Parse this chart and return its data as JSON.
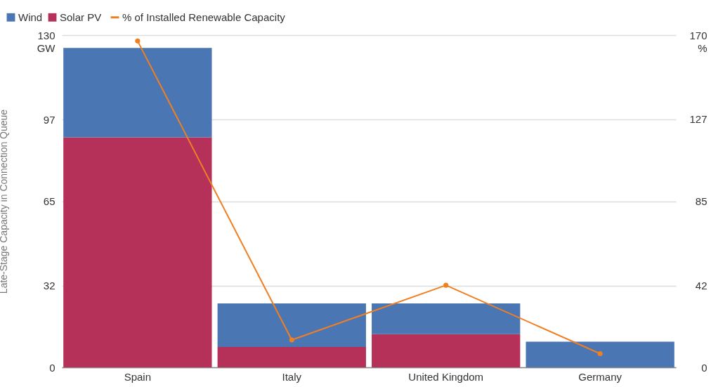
{
  "chart_data": {
    "type": "bar",
    "stacked": true,
    "ylabel": "Late-Stage Capacity in Connection Queue",
    "categories": [
      "Spain",
      "Italy",
      "United Kingdom",
      "Germany"
    ],
    "series": [
      {
        "name": "Solar PV",
        "color": "#b5315a",
        "values": [
          90,
          8,
          13,
          0
        ]
      },
      {
        "name": "Wind",
        "color": "#4a76b4",
        "values": [
          35,
          17,
          12,
          10
        ]
      },
      {
        "name": "% of Installed Renewable Capacity",
        "type": "line",
        "axis": "y2",
        "color": "#f07f22",
        "values": [
          167,
          14,
          42,
          7
        ]
      }
    ],
    "ylim": [
      0,
      130
    ],
    "yticks": [
      0,
      32,
      65,
      97,
      {
        "value": 130,
        "label": "130\nGW"
      }
    ],
    "y2lim": [
      0,
      170
    ],
    "y2ticks": [
      0,
      42,
      85,
      127,
      {
        "value": 170,
        "label": "170\n%"
      }
    ],
    "grid": "y",
    "legend": "top left",
    "marker": "circle",
    "line_style": "solid"
  }
}
